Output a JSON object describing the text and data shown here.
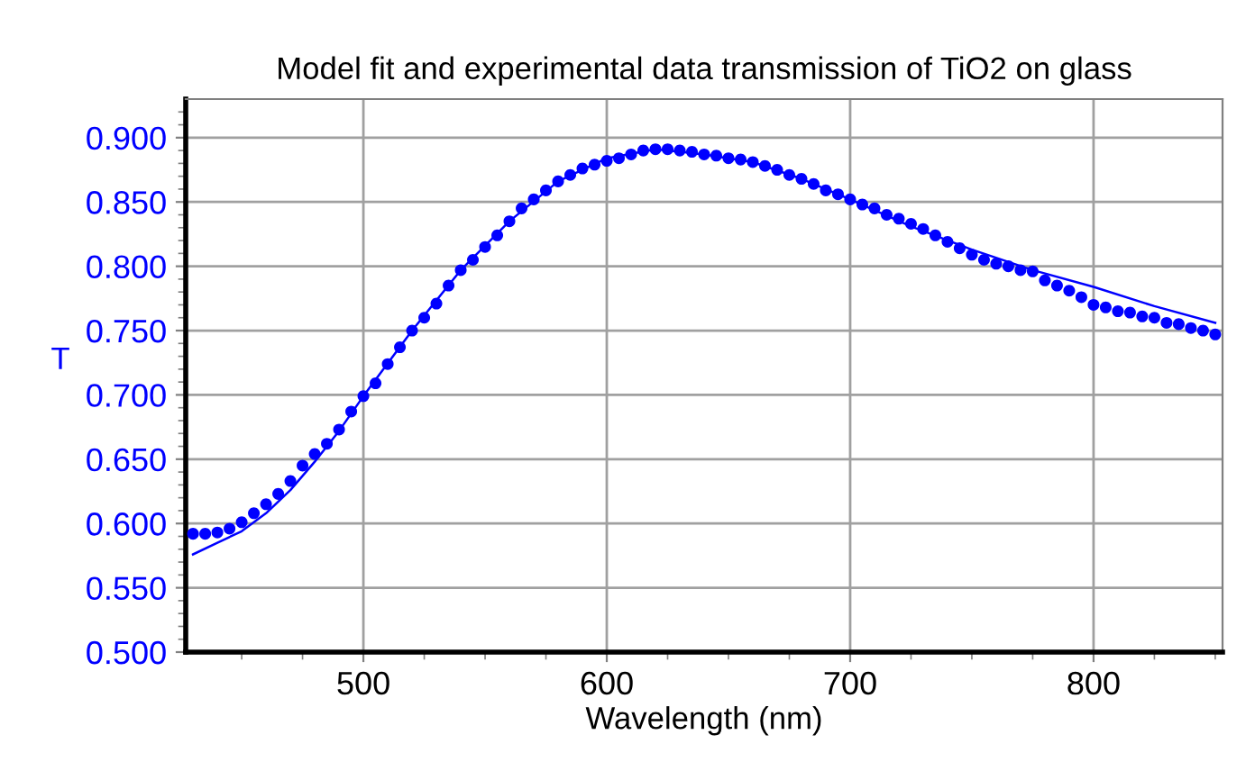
{
  "chart_data": {
    "type": "scatter",
    "title": "Model fit and experimental data transmission of TiO2 on glass",
    "xlabel": "Wavelength (nm)",
    "ylabel": "T",
    "xlim": [
      427,
      853
    ],
    "xticks": [
      500,
      600,
      700,
      800
    ],
    "ylim": [
      0.5,
      0.93
    ],
    "yticks": [
      {
        "value": 0.5,
        "label": "0.500"
      },
      {
        "value": 0.55,
        "label": "0.550"
      },
      {
        "value": 0.6,
        "label": "0.600"
      },
      {
        "value": 0.65,
        "label": "0.650"
      },
      {
        "value": 0.7,
        "label": "0.700"
      },
      {
        "value": 0.75,
        "label": "0.750"
      },
      {
        "value": 0.8,
        "label": "0.800"
      },
      {
        "value": 0.85,
        "label": "0.850"
      },
      {
        "value": 0.9,
        "label": "0.900"
      }
    ],
    "grid": true,
    "legend": false,
    "series": [
      {
        "marker": "circle",
        "color": "#0000ff",
        "x": [
          430,
          435,
          440,
          445,
          450,
          455,
          460,
          465,
          470,
          475,
          480,
          485,
          490,
          495,
          500,
          505,
          510,
          515,
          520,
          525,
          530,
          535,
          540,
          545,
          550,
          555,
          560,
          565,
          570,
          575,
          580,
          585,
          590,
          595,
          600,
          605,
          610,
          615,
          620,
          625,
          630,
          635,
          640,
          645,
          650,
          655,
          660,
          665,
          670,
          675,
          680,
          685,
          690,
          695,
          700,
          705,
          710,
          715,
          720,
          725,
          730,
          735,
          740,
          745,
          750,
          755,
          760,
          765,
          770,
          775,
          780,
          785,
          790,
          795,
          800,
          805,
          810,
          815,
          820,
          825,
          830,
          835,
          840,
          845,
          850
        ],
        "values": [
          0.592,
          0.592,
          0.593,
          0.596,
          0.601,
          0.608,
          0.615,
          0.623,
          0.633,
          0.645,
          0.654,
          0.662,
          0.673,
          0.687,
          0.699,
          0.709,
          0.724,
          0.737,
          0.75,
          0.76,
          0.771,
          0.785,
          0.797,
          0.805,
          0.815,
          0.824,
          0.835,
          0.845,
          0.852,
          0.859,
          0.866,
          0.871,
          0.876,
          0.879,
          0.882,
          0.884,
          0.887,
          0.89,
          0.891,
          0.891,
          0.89,
          0.889,
          0.887,
          0.886,
          0.884,
          0.883,
          0.881,
          0.878,
          0.875,
          0.871,
          0.868,
          0.864,
          0.859,
          0.856,
          0.852,
          0.848,
          0.845,
          0.84,
          0.837,
          0.833,
          0.829,
          0.824,
          0.819,
          0.814,
          0.809,
          0.805,
          0.802,
          0.8,
          0.797,
          0.796,
          0.789,
          0.785,
          0.781,
          0.776,
          0.77,
          0.768,
          0.765,
          0.764,
          0.761,
          0.76,
          0.756,
          0.755,
          0.752,
          0.75,
          0.747
        ]
      },
      {
        "type": "line",
        "line_style": "solid",
        "color": "#0000ff",
        "x": [
          430,
          440,
          450,
          460,
          470,
          480,
          490,
          500,
          520,
          540,
          560,
          580,
          600,
          620,
          640,
          660,
          680,
          700,
          725,
          750,
          775,
          800,
          825,
          850
        ],
        "values": [
          0.576,
          0.585,
          0.594,
          0.608,
          0.626,
          0.648,
          0.672,
          0.699,
          0.75,
          0.797,
          0.835,
          0.866,
          0.884,
          0.891,
          0.887,
          0.881,
          0.868,
          0.852,
          0.831,
          0.813,
          0.797,
          0.784,
          0.769,
          0.756
        ]
      }
    ]
  }
}
